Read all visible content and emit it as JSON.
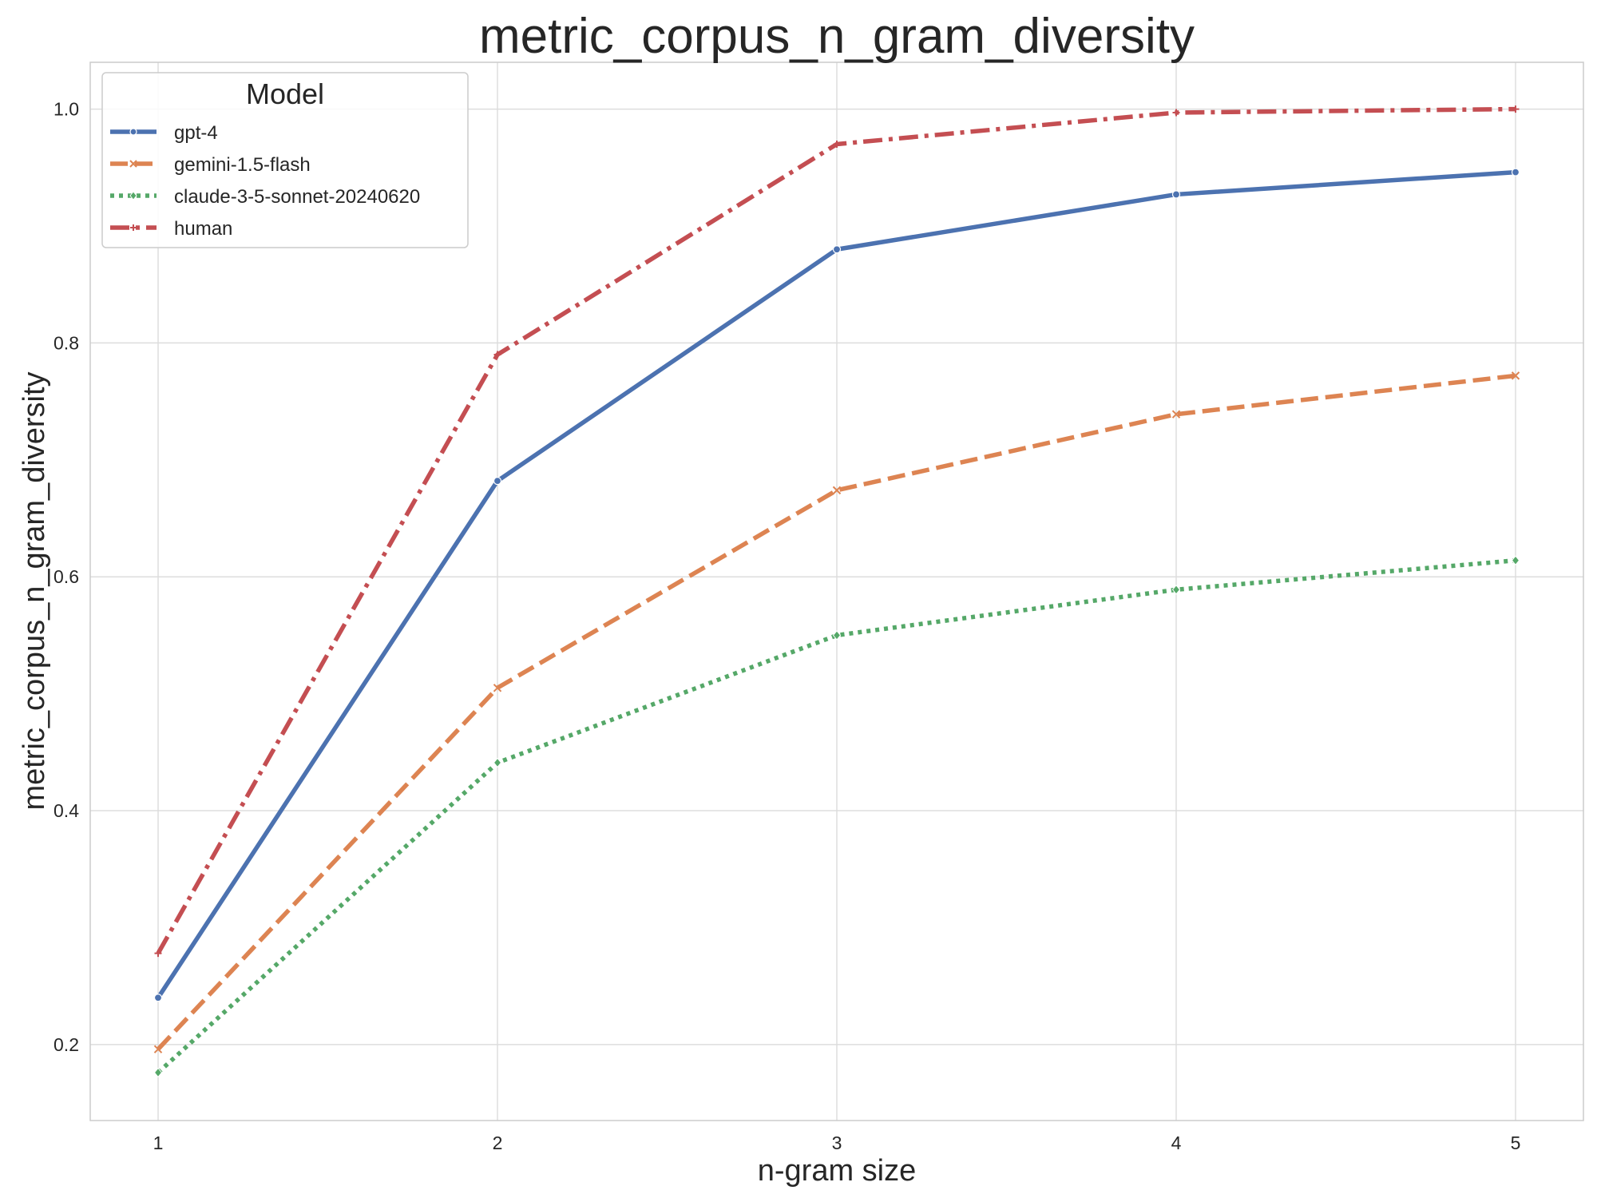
{
  "chart_data": {
    "type": "line",
    "title": "metric_corpus_n_gram_diversity",
    "xlabel": "n-gram size",
    "ylabel": "metric_corpus_n_gram_diversity",
    "x": [
      1,
      2,
      3,
      4,
      5
    ],
    "x_ticks": [
      "1",
      "2",
      "3",
      "4",
      "5"
    ],
    "y_ticks": [
      "0.2",
      "0.4",
      "0.6",
      "0.8",
      "1.0"
    ],
    "xlim": [
      0.8,
      5.2
    ],
    "ylim": [
      0.135,
      1.04
    ],
    "grid": true,
    "legend": {
      "title": "Model",
      "placement": "top-left"
    },
    "series": [
      {
        "name": "gpt-4",
        "values": [
          0.24,
          0.682,
          0.88,
          0.927,
          0.946
        ],
        "color": "#4c72b0",
        "dash": "solid",
        "marker": "circle"
      },
      {
        "name": "gemini-1.5-flash",
        "values": [
          0.196,
          0.505,
          0.674,
          0.739,
          0.772
        ],
        "color": "#dd8452",
        "dash": "dashed",
        "marker": "x"
      },
      {
        "name": "claude-3-5-sonnet-20240620",
        "values": [
          0.176,
          0.441,
          0.55,
          0.589,
          0.614
        ],
        "color": "#55a868",
        "dash": "dotted",
        "marker": "diamond"
      },
      {
        "name": "human",
        "values": [
          0.278,
          0.79,
          0.97,
          0.997,
          1.0
        ],
        "color": "#c44e52",
        "dash": "dashdot",
        "marker": "plus"
      }
    ]
  }
}
